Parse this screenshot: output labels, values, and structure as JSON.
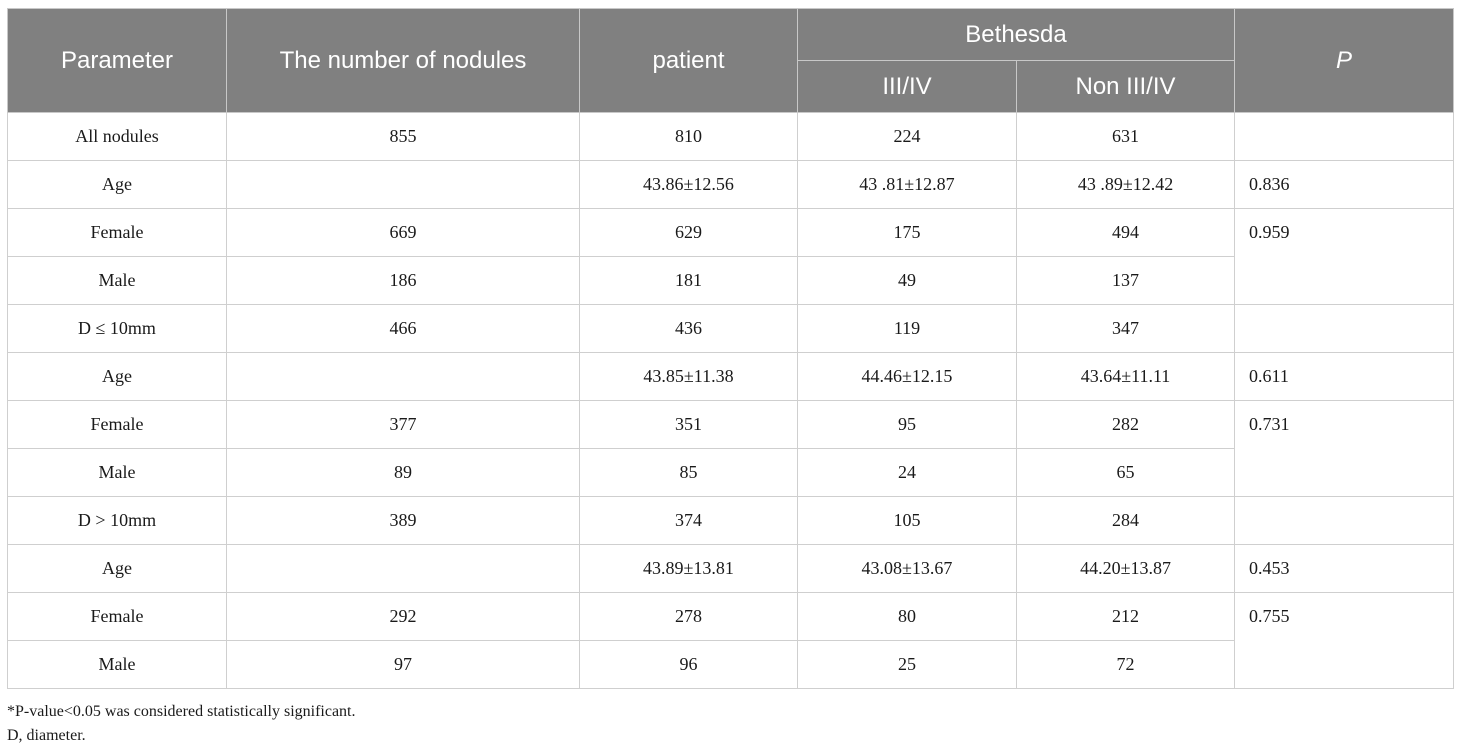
{
  "table": {
    "headers": {
      "parameter": "Parameter",
      "nodules": "The number of nodules",
      "patient": "patient",
      "bethesda": "Bethesda",
      "bethesda_sub": [
        "III/IV",
        "Non III/IV"
      ],
      "p": "P"
    },
    "rows": [
      {
        "parameter": "All nodules",
        "nodules": "855",
        "patient": "810",
        "iii_iv": "224",
        "non_iii_iv": "631",
        "p": ""
      },
      {
        "parameter": "Age",
        "nodules": "",
        "patient": "43.86±12.56",
        "iii_iv": "43 .81±12.87",
        "non_iii_iv": "43 .89±12.42",
        "p": "0.836"
      },
      {
        "parameter": "Female",
        "nodules": "669",
        "patient": "629",
        "iii_iv": "175",
        "non_iii_iv": "494",
        "p": "0.959"
      },
      {
        "parameter": "Male",
        "nodules": "186",
        "patient": "181",
        "iii_iv": "49",
        "non_iii_iv": "137"
      },
      {
        "parameter": "D ≤ 10mm",
        "nodules": "466",
        "patient": "436",
        "iii_iv": "119",
        "non_iii_iv": "347",
        "p": ""
      },
      {
        "parameter": "Age",
        "nodules": "",
        "patient": "43.85±11.38",
        "iii_iv": "44.46±12.15",
        "non_iii_iv": "43.64±11.11",
        "p": "0.611"
      },
      {
        "parameter": "Female",
        "nodules": "377",
        "patient": "351",
        "iii_iv": "95",
        "non_iii_iv": "282",
        "p": "0.731"
      },
      {
        "parameter": "Male",
        "nodules": "89",
        "patient": "85",
        "iii_iv": "24",
        "non_iii_iv": "65"
      },
      {
        "parameter": "D > 10mm",
        "nodules": "389",
        "patient": "374",
        "iii_iv": "105",
        "non_iii_iv": "284",
        "p": ""
      },
      {
        "parameter": "Age",
        "nodules": "",
        "patient": "43.89±13.81",
        "iii_iv": "43.08±13.67",
        "non_iii_iv": "44.20±13.87",
        "p": "0.453"
      },
      {
        "parameter": "Female",
        "nodules": "292",
        "patient": "278",
        "iii_iv": "80",
        "non_iii_iv": "212",
        "p": "0.755"
      },
      {
        "parameter": "Male",
        "nodules": "97",
        "patient": "96",
        "iii_iv": "25",
        "non_iii_iv": "72"
      }
    ]
  },
  "footnotes": [
    "*P-value<0.05 was considered statistically significant.",
    "D, diameter."
  ]
}
